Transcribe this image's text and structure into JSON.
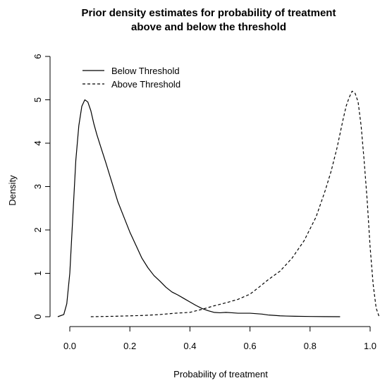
{
  "chart_data": {
    "type": "line",
    "title_line1": "Prior density estimates for probability of treatment",
    "title_line2": "above and below the threshold",
    "xlabel": "Probability of treatment",
    "ylabel": "Density",
    "xlim": [
      0.0,
      1.0
    ],
    "ylim": [
      0,
      6
    ],
    "xticks": [
      "0.0",
      "0.2",
      "0.4",
      "0.6",
      "0.8",
      "1.0"
    ],
    "yticks": [
      "0",
      "1",
      "2",
      "3",
      "4",
      "5",
      "6"
    ],
    "grid": false,
    "legend": {
      "position": "top-left"
    },
    "series": [
      {
        "name": "Below Threshold",
        "line_style": "solid",
        "color": "#000000",
        "x": [
          -0.04,
          -0.02,
          -0.01,
          0.0,
          0.01,
          0.02,
          0.03,
          0.04,
          0.05,
          0.06,
          0.07,
          0.08,
          0.09,
          0.1,
          0.12,
          0.14,
          0.16,
          0.18,
          0.2,
          0.22,
          0.24,
          0.26,
          0.28,
          0.3,
          0.32,
          0.34,
          0.36,
          0.38,
          0.4,
          0.42,
          0.44,
          0.46,
          0.48,
          0.5,
          0.52,
          0.54,
          0.56,
          0.58,
          0.6,
          0.62,
          0.64,
          0.66,
          0.68,
          0.7,
          0.72,
          0.75,
          0.8,
          0.85,
          0.9
        ],
        "y": [
          0.0,
          0.05,
          0.3,
          1.0,
          2.3,
          3.6,
          4.4,
          4.85,
          5.0,
          4.95,
          4.75,
          4.45,
          4.2,
          3.98,
          3.55,
          3.1,
          2.65,
          2.3,
          1.95,
          1.65,
          1.35,
          1.13,
          0.95,
          0.82,
          0.68,
          0.57,
          0.5,
          0.42,
          0.34,
          0.26,
          0.19,
          0.14,
          0.1,
          0.09,
          0.1,
          0.09,
          0.08,
          0.08,
          0.08,
          0.07,
          0.06,
          0.04,
          0.03,
          0.02,
          0.015,
          0.01,
          0.005,
          0.002,
          0.0
        ]
      },
      {
        "name": "Above Threshold",
        "line_style": "dashed",
        "color": "#000000",
        "x": [
          0.07,
          0.15,
          0.2,
          0.25,
          0.3,
          0.35,
          0.4,
          0.44,
          0.48,
          0.52,
          0.56,
          0.6,
          0.63,
          0.66,
          0.7,
          0.74,
          0.78,
          0.82,
          0.85,
          0.87,
          0.89,
          0.91,
          0.92,
          0.93,
          0.94,
          0.95,
          0.96,
          0.97,
          0.98,
          0.99,
          1.0,
          1.01,
          1.02,
          1.03
        ],
        "y": [
          0.0,
          0.01,
          0.02,
          0.03,
          0.05,
          0.08,
          0.1,
          0.17,
          0.25,
          0.32,
          0.4,
          0.52,
          0.68,
          0.85,
          1.05,
          1.35,
          1.75,
          2.3,
          2.9,
          3.35,
          3.9,
          4.55,
          4.85,
          5.05,
          5.2,
          5.15,
          4.95,
          4.4,
          3.6,
          2.7,
          1.6,
          0.75,
          0.2,
          0.0
        ]
      }
    ]
  }
}
